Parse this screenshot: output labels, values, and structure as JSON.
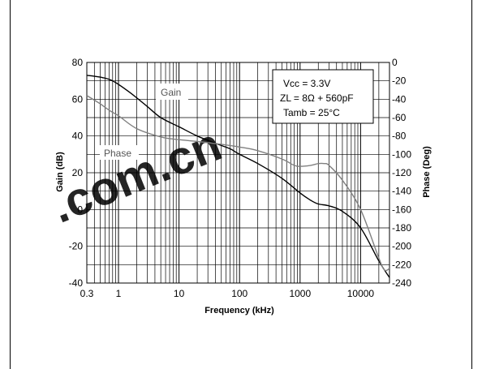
{
  "chart_data": {
    "type": "line",
    "xlabel": "Frequency (kHz)",
    "ylabel_left": "Gain (dB)",
    "ylabel_right": "Phase (Deg)",
    "x_scale": "log",
    "xlim": [
      0.3,
      30000
    ],
    "ylim_left": [
      -40,
      80
    ],
    "ylim_right": [
      -240,
      0
    ],
    "x_tick_labels": [
      "0.3",
      "1",
      "10",
      "100",
      "1000",
      "10000"
    ],
    "y_left_tick_labels": [
      "80",
      "60",
      "40",
      "20",
      "0",
      "-20",
      "-40"
    ],
    "y_right_tick_labels": [
      "0",
      "-20",
      "-40",
      "-60",
      "-80",
      "-100",
      "-120",
      "-140",
      "-160",
      "-180",
      "-200",
      "-220",
      "-240"
    ],
    "conditions": [
      "Vcc = 3.3V",
      "ZL = 8Ω + 560pF",
      "Tamb = 25°C"
    ],
    "grid": true,
    "series": [
      {
        "name": "Gain",
        "axis": "left",
        "color": "#000000",
        "x": [
          0.3,
          0.5,
          0.8,
          1.5,
          3,
          5,
          10,
          20,
          40,
          70,
          100,
          200,
          500,
          1000,
          1500,
          2000,
          3000,
          5000,
          10000,
          20000,
          30000
        ],
        "y": [
          73,
          72,
          70,
          64,
          56,
          50,
          45,
          40,
          36,
          33,
          30,
          25,
          17,
          9,
          5,
          3,
          2,
          -1,
          -10,
          -28,
          -37
        ]
      },
      {
        "name": "Phase",
        "axis": "right",
        "color": "#808080",
        "x": [
          0.3,
          0.5,
          0.7,
          1,
          2,
          5,
          10,
          20,
          50,
          100,
          200,
          500,
          800,
          1000,
          1500,
          2000,
          2500,
          3000,
          5000,
          10000,
          20000,
          25000,
          30000
        ],
        "y": [
          -36,
          -45,
          -52,
          -58,
          -72,
          -81,
          -84,
          -86,
          -89,
          -92,
          -96,
          -105,
          -112,
          -113,
          -112,
          -110,
          -110,
          -112,
          -128,
          -160,
          -213,
          -226,
          -224
        ]
      }
    ]
  }
}
